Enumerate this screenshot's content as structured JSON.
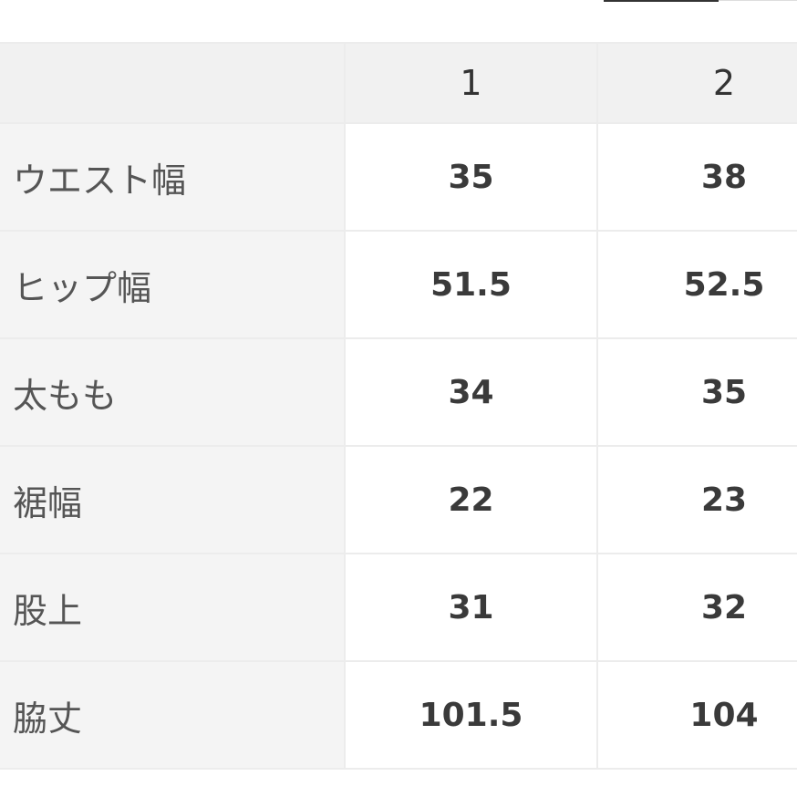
{
  "columns": [
    "",
    "1",
    "2"
  ],
  "rows": [
    {
      "label": "ウエスト幅",
      "values": [
        "35",
        "38"
      ]
    },
    {
      "label": "ヒップ幅",
      "values": [
        "51.5",
        "52.5"
      ]
    },
    {
      "label": "太もも",
      "values": [
        "34",
        "35"
      ]
    },
    {
      "label": "裾幅",
      "values": [
        "22",
        "23"
      ]
    },
    {
      "label": "股上",
      "values": [
        "31",
        "32"
      ]
    },
    {
      "label": "脇丈",
      "values": [
        "101.5",
        "104"
      ]
    }
  ]
}
